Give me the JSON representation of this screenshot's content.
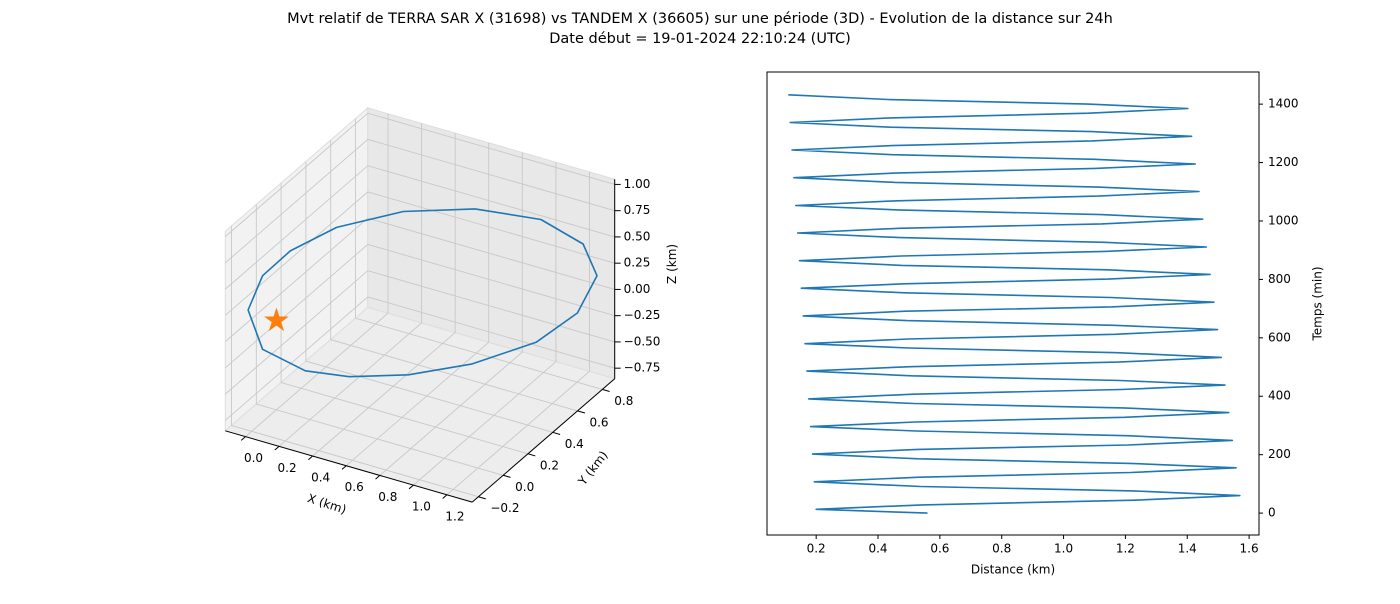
{
  "suptitle": [
    "Mvt relatif de TERRA SAR X (31698) vs TANDEM X (36605) sur une période (3D) - Evolution de la distance sur 24h",
    "Date début = 19-01-2024 22:10:24 (UTC)"
  ],
  "chart_data": [
    {
      "type": "line3d",
      "color": "#1f77b4",
      "xlabel": "X (km)",
      "ylabel": "Y (km)",
      "zlabel": "Z (km)",
      "x": [
        0.853,
        1.137,
        1.319,
        1.379,
        1.294,
        1.116,
        0.84,
        0.565,
        0.309,
        0.12,
        -0.064,
        -0.127,
        -0.064,
        0.055,
        0.255,
        0.543,
        0.853
      ],
      "y": [
        0.447,
        0.593,
        0.687,
        0.718,
        0.675,
        0.583,
        0.441,
        0.299,
        0.169,
        0.07,
        -0.025,
        -0.057,
        -0.025,
        0.037,
        0.14,
        0.288,
        0.447
      ],
      "z": [
        1.0,
        0.881,
        0.636,
        0.33,
        -0.02,
        -0.288,
        -0.476,
        -0.561,
        -0.565,
        -0.495,
        -0.278,
        0.1,
        0.423,
        0.651,
        0.862,
        0.995,
        1.0
      ],
      "marker": {
        "x": 0,
        "y": 0,
        "z": 0,
        "color": "#ff7f0e"
      },
      "xlim": [
        -0.12,
        1.35
      ],
      "ylim": [
        -0.25,
        0.9
      ],
      "zlim": [
        -0.85,
        1.05
      ],
      "xticks": [
        {
          "value": 0,
          "label": "0.0"
        },
        0.2,
        0.4,
        0.6,
        0.8,
        {
          "value": 1,
          "label": "1.0"
        },
        1.2
      ],
      "yticks": [
        {
          "value": -0.2,
          "label": "−0.2"
        },
        {
          "value": 0,
          "label": "0.0"
        },
        0.2,
        0.4,
        0.6,
        0.8
      ],
      "zticks": [
        {
          "value": -0.75,
          "label": "−0.75"
        },
        {
          "value": -0.5,
          "label": "−0.50"
        },
        {
          "value": -0.25,
          "label": "−0.25"
        },
        {
          "value": 0,
          "label": "0.00"
        },
        0.25,
        {
          "value": 0.5,
          "label": "0.50"
        },
        0.75,
        {
          "value": 1,
          "label": "1.00"
        }
      ],
      "grid": true
    },
    {
      "type": "line",
      "color": "#1f77b4",
      "xlabel": "Distance (km)",
      "ylabel": "Temps (min)",
      "yaxis": "right",
      "x": [
        0.56,
        0.2,
        0.543,
        1.228,
        1.57,
        1.226,
        0.538,
        0.194,
        0.535,
        1.217,
        1.558,
        1.216,
        0.531,
        0.188,
        0.528,
        1.207,
        1.546,
        1.205,
        0.523,
        0.182,
        0.52,
        1.196,
        1.534,
        1.194,
        0.516,
        0.176,
        0.513,
        1.186,
        1.522,
        1.184,
        0.508,
        0.17,
        0.505,
        1.175,
        1.51,
        1.174,
        0.501,
        0.164,
        0.498,
        1.165,
        1.498,
        1.163,
        0.493,
        0.158,
        0.49,
        1.154,
        1.486,
        1.153,
        0.486,
        0.152,
        0.483,
        1.144,
        1.474,
        1.142,
        0.478,
        0.146,
        0.475,
        1.133,
        1.462,
        1.132,
        0.471,
        0.14,
        0.468,
        1.123,
        1.45,
        1.121,
        0.463,
        0.134,
        0.46,
        1.112,
        1.438,
        1.111,
        0.456,
        0.128,
        0.453,
        1.102,
        1.426,
        1.1,
        0.448,
        0.122,
        0.445,
        1.091,
        1.414,
        1.09,
        0.441,
        0.116,
        0.438,
        1.081,
        1.402,
        1.079,
        0.433,
        0.11
      ],
      "values": [
        0,
        13,
        28,
        44,
        60,
        76,
        91,
        107,
        123,
        139,
        155,
        170,
        186,
        202,
        218,
        233,
        249,
        265,
        281,
        296,
        312,
        328,
        344,
        360,
        375,
        391,
        407,
        423,
        438,
        454,
        470,
        486,
        501,
        517,
        533,
        549,
        565,
        580,
        596,
        612,
        628,
        643,
        659,
        675,
        691,
        706,
        722,
        738,
        754,
        770,
        785,
        801,
        817,
        833,
        848,
        864,
        880,
        896,
        911,
        927,
        943,
        959,
        975,
        990,
        1006,
        1022,
        1038,
        1053,
        1069,
        1085,
        1101,
        1116,
        1132,
        1148,
        1164,
        1180,
        1195,
        1211,
        1227,
        1243,
        1258,
        1274,
        1290,
        1306,
        1321,
        1337,
        1353,
        1369,
        1385,
        1400,
        1416,
        1432
      ],
      "xlim": [
        0.041,
        1.632
      ],
      "ylim": [
        -75,
        1510
      ],
      "xticks": [
        0.2,
        0.4,
        0.6,
        0.8,
        {
          "value": 1,
          "label": "1.0"
        },
        1.2,
        1.4,
        1.6
      ],
      "yticks": [
        0,
        200,
        400,
        600,
        800,
        1000,
        1200,
        1400
      ]
    }
  ]
}
